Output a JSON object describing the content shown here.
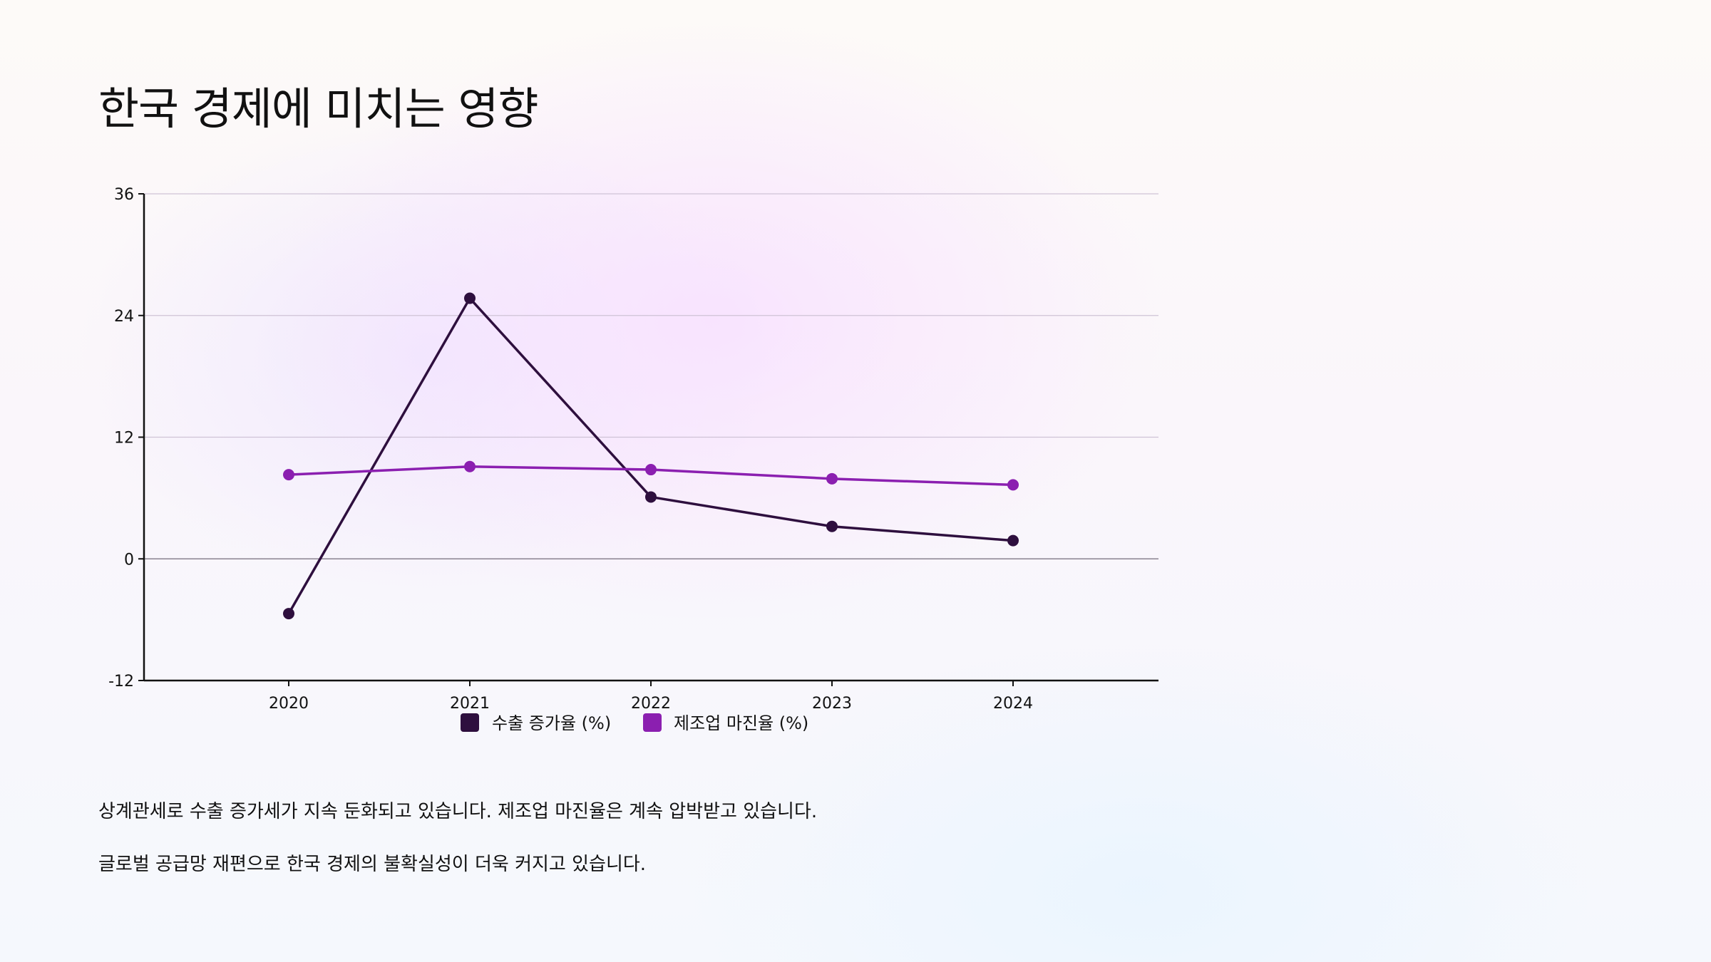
{
  "slide": {
    "title": "한국 경제에 미치는 영향",
    "notes": [
      "상계관세로 수출 증가세가 지속 둔화되고 있습니다. 제조업 마진율은 계속 압박받고 있습니다.",
      "글로벌 공급망 재편으로 한국 경제의 불확실성이 더욱 커지고 있습니다."
    ]
  },
  "chart_data": {
    "type": "line",
    "title": "",
    "xlabel": "",
    "ylabel": "",
    "categories": [
      "2020",
      "2021",
      "2022",
      "2023",
      "2024"
    ],
    "series": [
      {
        "name": "수출 증가율 (%)",
        "color": "#2e0f3e",
        "values": [
          -5.4,
          25.7,
          6.1,
          3.2,
          1.8
        ]
      },
      {
        "name": "제조업 마진율 (%)",
        "color": "#8b1fb0",
        "values": [
          8.3,
          9.1,
          8.8,
          7.9,
          7.3
        ]
      }
    ],
    "ylim": [
      -12,
      36
    ],
    "yticks": [
      -12,
      0,
      12,
      24,
      36
    ],
    "grid": true,
    "legend_position": "bottom-center"
  }
}
